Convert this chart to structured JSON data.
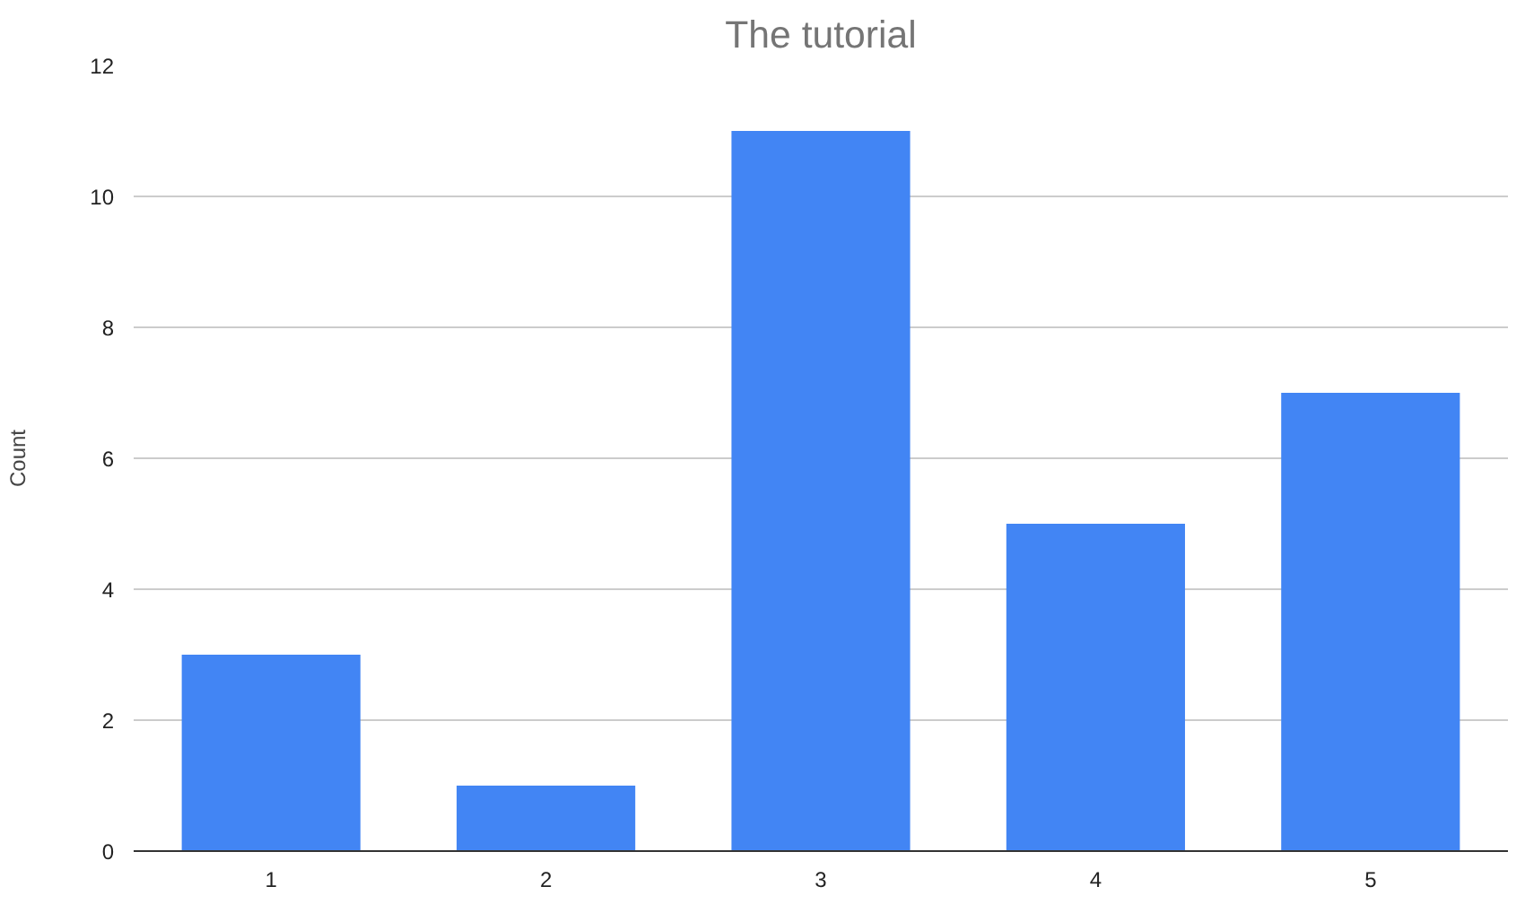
{
  "chart_data": {
    "type": "bar",
    "title": "The tutorial",
    "ylabel": "Count",
    "categories": [
      "1",
      "2",
      "3",
      "4",
      "5"
    ],
    "values": [
      3,
      1,
      11,
      5,
      7
    ],
    "color": "#4285f4",
    "ylim": [
      0,
      12
    ],
    "yticks": [
      0,
      2,
      4,
      6,
      8,
      10,
      12
    ],
    "grid": "y"
  }
}
